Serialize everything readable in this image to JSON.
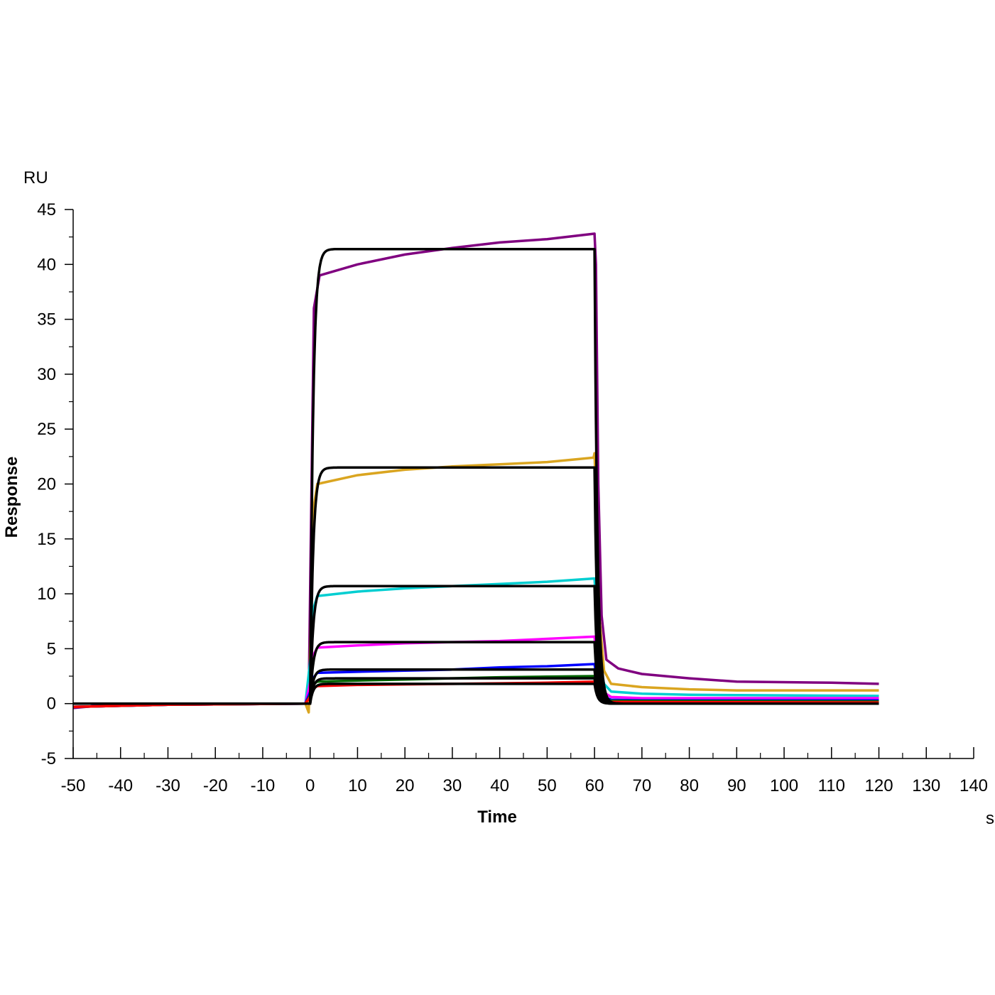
{
  "chart_data": {
    "type": "line",
    "title": "",
    "xlabel": "Time",
    "ylabel": "Response",
    "x_unit": "s",
    "y_unit": "RU",
    "xlim": [
      -50,
      140
    ],
    "ylim": [
      -5,
      45
    ],
    "x_ticks": [
      -50,
      -40,
      -30,
      -20,
      -10,
      0,
      10,
      20,
      30,
      40,
      50,
      60,
      70,
      80,
      90,
      100,
      110,
      120,
      130,
      140
    ],
    "y_ticks": [
      -5,
      0,
      5,
      10,
      15,
      20,
      25,
      30,
      35,
      40,
      45
    ],
    "x_tick_labels": [
      "-50",
      "-40",
      "-30",
      "-20",
      "-10",
      "0",
      "10",
      "20",
      "30",
      "40",
      "50",
      "60",
      "70",
      "80",
      "90",
      "100",
      "110",
      "120",
      "130",
      "140"
    ],
    "y_tick_labels": [
      "-5",
      "0",
      "5",
      "10",
      "15",
      "20",
      "25",
      "30",
      "35",
      "40",
      "45"
    ],
    "grid": false,
    "legend": "none",
    "series": [
      {
        "name": "purple",
        "color": "#800080",
        "points": [
          [
            -50,
            -0.4
          ],
          [
            -45,
            -0.2
          ],
          [
            -30,
            -0.1
          ],
          [
            -1,
            0
          ],
          [
            -0.3,
            0.5
          ],
          [
            0.3,
            20
          ],
          [
            0.8,
            36
          ],
          [
            2,
            39
          ],
          [
            10,
            40
          ],
          [
            20,
            40.9
          ],
          [
            30,
            41.5
          ],
          [
            40,
            42
          ],
          [
            50,
            42.3
          ],
          [
            60,
            42.8
          ],
          [
            60.3,
            40
          ],
          [
            60.8,
            20
          ],
          [
            61.5,
            8
          ],
          [
            62.5,
            4
          ],
          [
            65,
            3.2
          ],
          [
            70,
            2.7
          ],
          [
            80,
            2.3
          ],
          [
            90,
            2.0
          ],
          [
            110,
            1.9
          ],
          [
            120,
            1.8
          ]
        ]
      },
      {
        "name": "orange",
        "color": "#DAA520",
        "points": [
          [
            -50,
            -0.3
          ],
          [
            -30,
            -0.1
          ],
          [
            -1,
            0
          ],
          [
            -0.3,
            -0.8
          ],
          [
            0.3,
            10
          ],
          [
            0.8,
            18
          ],
          [
            1.5,
            20
          ],
          [
            10,
            20.8
          ],
          [
            20,
            21.3
          ],
          [
            30,
            21.6
          ],
          [
            40,
            21.8
          ],
          [
            50,
            22
          ],
          [
            59.8,
            22.4
          ],
          [
            60,
            22.8
          ],
          [
            60.4,
            18
          ],
          [
            61,
            8
          ],
          [
            62,
            3
          ],
          [
            63.5,
            1.8
          ],
          [
            70,
            1.5
          ],
          [
            80,
            1.3
          ],
          [
            90,
            1.2
          ],
          [
            120,
            1.2
          ]
        ]
      },
      {
        "name": "cyan",
        "color": "#00CED1",
        "points": [
          [
            -50,
            -0.3
          ],
          [
            -30,
            -0.1
          ],
          [
            -1,
            0
          ],
          [
            0.3,
            5
          ],
          [
            0.8,
            8.8
          ],
          [
            1.5,
            9.8
          ],
          [
            10,
            10.2
          ],
          [
            20,
            10.5
          ],
          [
            30,
            10.7
          ],
          [
            40,
            10.9
          ],
          [
            50,
            11.1
          ],
          [
            60,
            11.4
          ],
          [
            60.5,
            8
          ],
          [
            61,
            4
          ],
          [
            62,
            1.8
          ],
          [
            63.5,
            1.1
          ],
          [
            70,
            0.9
          ],
          [
            80,
            0.8
          ],
          [
            120,
            0.7
          ]
        ]
      },
      {
        "name": "magenta",
        "color": "#FF00FF",
        "points": [
          [
            -50,
            -0.3
          ],
          [
            -30,
            -0.1
          ],
          [
            -1,
            0
          ],
          [
            0.3,
            2.5
          ],
          [
            0.8,
            4.5
          ],
          [
            1.5,
            5.1
          ],
          [
            10,
            5.3
          ],
          [
            20,
            5.5
          ],
          [
            30,
            5.6
          ],
          [
            40,
            5.7
          ],
          [
            50,
            5.9
          ],
          [
            60,
            6.1
          ],
          [
            60.5,
            4
          ],
          [
            61,
            2
          ],
          [
            62,
            1
          ],
          [
            63.5,
            0.6
          ],
          [
            70,
            0.5
          ],
          [
            120,
            0.5
          ]
        ]
      },
      {
        "name": "blue",
        "color": "#0000FF",
        "points": [
          [
            -50,
            -0.3
          ],
          [
            -30,
            -0.1
          ],
          [
            -1,
            0
          ],
          [
            0.3,
            1.4
          ],
          [
            0.8,
            2.4
          ],
          [
            1.5,
            2.8
          ],
          [
            10,
            2.9
          ],
          [
            20,
            3.0
          ],
          [
            30,
            3.1
          ],
          [
            40,
            3.3
          ],
          [
            50,
            3.4
          ],
          [
            60,
            3.6
          ],
          [
            60.5,
            2.2
          ],
          [
            61,
            1.2
          ],
          [
            62,
            0.6
          ],
          [
            63.5,
            0.35
          ],
          [
            70,
            0.3
          ],
          [
            120,
            0.3
          ]
        ]
      },
      {
        "name": "green",
        "color": "#006400",
        "points": [
          [
            -50,
            -0.3
          ],
          [
            -30,
            -0.1
          ],
          [
            -1,
            0
          ],
          [
            0.3,
            1
          ],
          [
            0.8,
            1.8
          ],
          [
            1.5,
            2.0
          ],
          [
            10,
            2.1
          ],
          [
            20,
            2.2
          ],
          [
            30,
            2.3
          ],
          [
            40,
            2.4
          ],
          [
            50,
            2.45
          ],
          [
            60,
            2.5
          ],
          [
            60.5,
            1.5
          ],
          [
            61,
            0.8
          ],
          [
            62,
            0.4
          ],
          [
            63.5,
            0.25
          ],
          [
            120,
            0.2
          ]
        ]
      },
      {
        "name": "red",
        "color": "#FF0000",
        "points": [
          [
            -50,
            -0.3
          ],
          [
            -30,
            -0.1
          ],
          [
            -1,
            0
          ],
          [
            0.3,
            0.8
          ],
          [
            0.8,
            1.4
          ],
          [
            1.5,
            1.6
          ],
          [
            10,
            1.7
          ],
          [
            20,
            1.75
          ],
          [
            30,
            1.8
          ],
          [
            40,
            1.85
          ],
          [
            50,
            1.9
          ],
          [
            60,
            2.0
          ],
          [
            60.5,
            1.2
          ],
          [
            61,
            0.6
          ],
          [
            62,
            0.3
          ],
          [
            63.5,
            0.15
          ],
          [
            120,
            0.1
          ]
        ]
      }
    ],
    "fits": {
      "color": "#000000",
      "association_start": 0,
      "dissociation_start": 60,
      "end": 120,
      "plateaus": [
        41.4,
        21.5,
        10.7,
        5.6,
        3.1,
        2.3,
        1.8
      ]
    }
  }
}
